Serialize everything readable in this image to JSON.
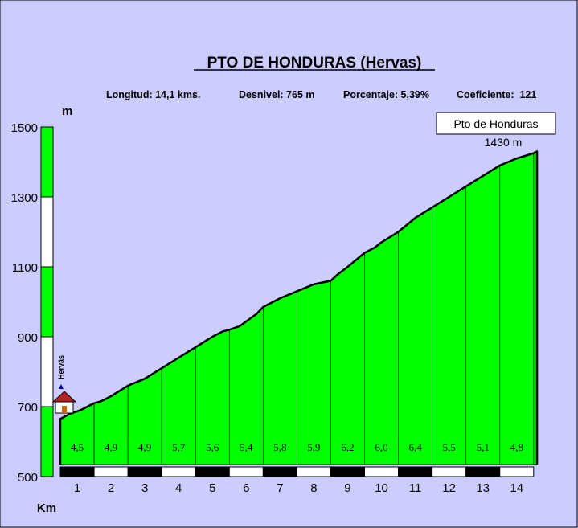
{
  "chart_data": {
    "type": "area",
    "title": "PTO DE HONDURAS (Hervas)",
    "stats": {
      "longitud": "Longitud: 14,1 kms.",
      "desnivel": "Desnivel: 765 m",
      "porcentaje": "Porcentaje: 5,39%",
      "coeficiente": "Coeficiente:  121"
    },
    "y_unit": "m",
    "x_unit": "Km",
    "y_ticks": [
      "1500",
      "1300",
      "1100",
      "900",
      "700",
      "500"
    ],
    "y_tick_values": [
      1500,
      1300,
      1100,
      900,
      700,
      500
    ],
    "ylim": [
      500,
      1500
    ],
    "xlim": [
      0,
      14.1
    ],
    "x_ticks": [
      "1",
      "2",
      "3",
      "4",
      "5",
      "6",
      "7",
      "8",
      "9",
      "10",
      "11",
      "12",
      "13",
      "14"
    ],
    "segments": [
      "4,5",
      "4,9",
      "4,9",
      "5,7",
      "5,6",
      "5,4",
      "5,8",
      "5,9",
      "6,2",
      "6,0",
      "6,4",
      "5,5",
      "5,1",
      "4,8"
    ],
    "profile": {
      "x": [
        0,
        0.3,
        0.6,
        1.0,
        1.2,
        1.5,
        2.0,
        2.5,
        3.0,
        3.5,
        4.0,
        4.5,
        4.8,
        5.0,
        5.3,
        5.8,
        6.0,
        6.5,
        7.0,
        7.5,
        8.0,
        8.2,
        8.5,
        9.0,
        9.3,
        9.5,
        10.0,
        10.5,
        11.0,
        11.5,
        12.0,
        12.5,
        13.0,
        13.5,
        14.0,
        14.1
      ],
      "y": [
        665,
        680,
        690,
        710,
        715,
        730,
        760,
        780,
        810,
        840,
        870,
        900,
        915,
        920,
        930,
        965,
        985,
        1010,
        1030,
        1050,
        1060,
        1078,
        1100,
        1140,
        1155,
        1170,
        1200,
        1240,
        1270,
        1300,
        1330,
        1360,
        1390,
        1410,
        1425,
        1430
      ]
    },
    "start": {
      "name": "Hervás",
      "altitude": 665
    },
    "summit": {
      "name": "Pto de Honduras",
      "altitude_label": "1430 m",
      "altitude": 1430
    },
    "colors": {
      "background": "#ccccff",
      "fill": "#00ff00",
      "scale_green": "#00ff00",
      "scale_white": "#ffffff",
      "outline": "#000000"
    }
  }
}
